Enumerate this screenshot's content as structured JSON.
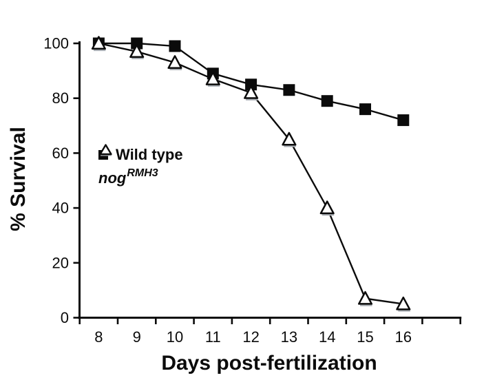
{
  "chart_data": {
    "type": "line",
    "title": "",
    "xlabel": "Days post-fertilization",
    "ylabel": "% Survival",
    "x": [
      8,
      9,
      10,
      11,
      12,
      13,
      14,
      15,
      16
    ],
    "series": [
      {
        "name": "Wild type",
        "marker": "filled-square",
        "values": [
          100,
          100,
          99,
          89,
          85,
          83,
          79,
          76,
          72
        ]
      },
      {
        "name": "nogRMH3",
        "marker": "open-triangle",
        "values": [
          100,
          97,
          93,
          87,
          82,
          65,
          40,
          7,
          5
        ]
      }
    ],
    "ylim": [
      0,
      100
    ],
    "yticks": [
      0,
      20,
      40,
      60,
      80,
      100
    ],
    "xlim_categories": "category axis, ticks at bin edges, one unlabeled bin after 16",
    "grid": false,
    "legend": {
      "position": "inside-upper-left",
      "items": [
        {
          "label": "Wild type",
          "marker": "filled-square"
        },
        {
          "label": "nog",
          "sup": "RMH3",
          "marker": "open-triangle"
        }
      ]
    },
    "colors": {
      "background": "#ffffff",
      "axis": "#0b0b0b",
      "line": "#0b0b0b",
      "square_fill": "#0b0b0b",
      "triangle_fill": "#ffffff",
      "triangle_stroke": "#0b0b0b",
      "triangle_shadow": "#a9aeb4",
      "text": "#0b0b0b"
    }
  }
}
